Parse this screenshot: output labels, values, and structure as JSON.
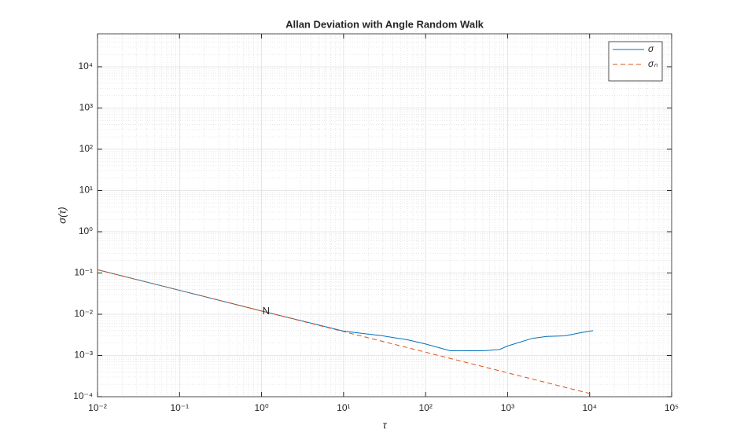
{
  "chart_data": {
    "type": "line",
    "title": "Allan Deviation with Angle Random Walk",
    "x_label": "τ",
    "y_label": "σ(τ)",
    "log_x": true,
    "log_y": true,
    "grid": true,
    "minor_grid": true,
    "legend_position": "top-right",
    "xlim": [
      0.01,
      100000
    ],
    "ylim": [
      0.0001,
      63000
    ],
    "xticks": [
      {
        "value": 0.01,
        "label": "10⁻²"
      },
      {
        "value": 0.1,
        "label": "10⁻¹"
      },
      {
        "value": 1,
        "label": "10⁰"
      },
      {
        "value": 10,
        "label": "10¹"
      },
      {
        "value": 100,
        "label": "10²"
      },
      {
        "value": 1000,
        "label": "10³"
      },
      {
        "value": 10000,
        "label": "10⁴"
      },
      {
        "value": 100000,
        "label": "10⁵"
      }
    ],
    "yticks": [
      {
        "value": 0.0001,
        "label": "10⁻⁴"
      },
      {
        "value": 0.001,
        "label": "10⁻³"
      },
      {
        "value": 0.01,
        "label": "10⁻²"
      },
      {
        "value": 0.1,
        "label": "10⁻¹"
      },
      {
        "value": 1,
        "label": "10⁰"
      },
      {
        "value": 10,
        "label": "10¹"
      },
      {
        "value": 100,
        "label": "10²"
      },
      {
        "value": 1000,
        "label": "10³"
      },
      {
        "value": 10000,
        "label": "10⁴"
      }
    ],
    "series": [
      {
        "name": "σ",
        "color": "#0072bd",
        "dash": false,
        "x": [
          0.01,
          0.1,
          1,
          10,
          30,
          60,
          100,
          200,
          500,
          800,
          1000,
          2000,
          3000,
          5000,
          8000,
          11000
        ],
        "values": [
          0.12,
          0.038,
          0.012,
          0.0039,
          0.003,
          0.0024,
          0.0019,
          0.0013,
          0.0013,
          0.0014,
          0.0017,
          0.0026,
          0.0029,
          0.003,
          0.0036,
          0.004
        ]
      },
      {
        "name": "σₙ",
        "color": "#d95319",
        "dash": true,
        "x": [
          0.01,
          10700
        ],
        "values": [
          0.12,
          0.000116
        ]
      }
    ],
    "annotations": [
      {
        "text": "N",
        "x": 1,
        "y": 0.0115
      }
    ]
  }
}
